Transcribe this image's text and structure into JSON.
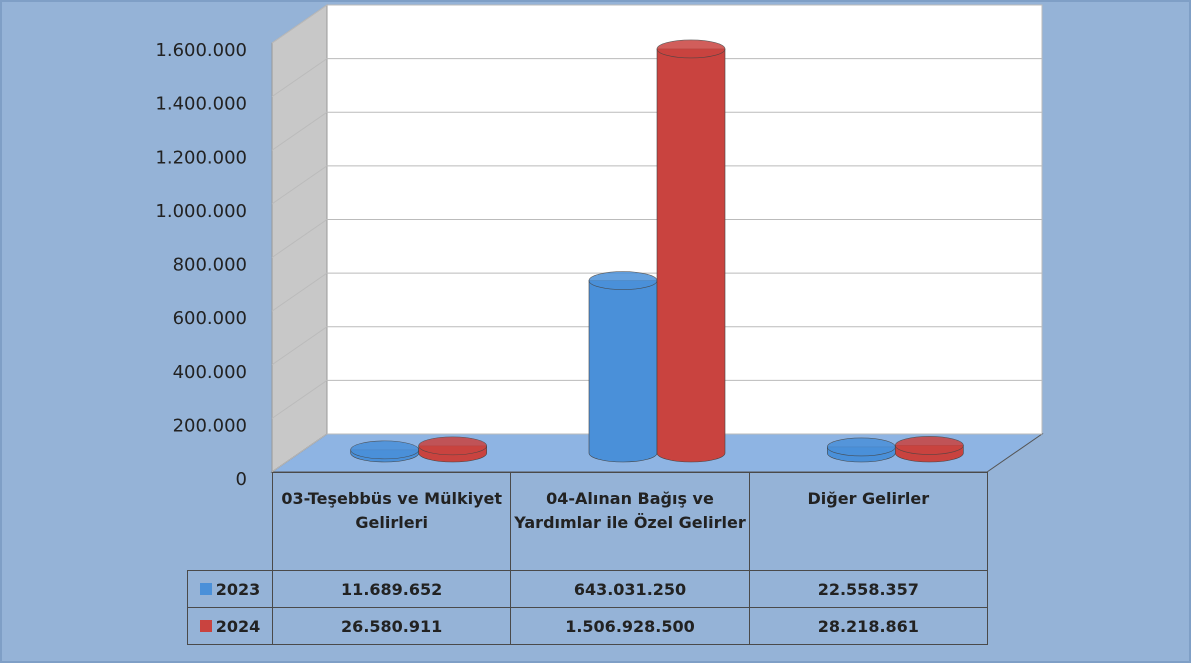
{
  "chart_data": {
    "type": "cylinder",
    "categories": [
      "03-Teşebbüs ve Mülkiyet Gelirleri",
      "04-Alınan Bağış ve Yardımlar ile Özel Gelirler",
      "Diğer Gelirler"
    ],
    "series": [
      {
        "name": "2023",
        "color": "#4a90d9",
        "values": [
          11689.652,
          643031.25,
          22558.357
        ],
        "value_labels": [
          "11.689.652",
          "643.031.250",
          "22.558.357"
        ]
      },
      {
        "name": "2024",
        "color": "#c9433f",
        "values": [
          26580.911,
          1506928.5,
          28218.861
        ],
        "value_labels": [
          "26.580.911",
          "1.506.928.500",
          "28.218.861"
        ]
      }
    ],
    "ylim": [
      0,
      1600000
    ],
    "yticks": [
      0,
      {
        "value": 200000,
        "label": "200.000"
      },
      {
        "value": 400000,
        "label": "400.000"
      },
      {
        "value": 600000,
        "label": "600.000"
      },
      {
        "value": 800000,
        "label": "800.000"
      },
      {
        "value": 1000000,
        "label": "1.000.000"
      },
      {
        "value": 1200000,
        "label": "1.200.000"
      },
      {
        "value": 1400000,
        "label": "1.400.000"
      },
      {
        "value": 1600000,
        "label": "1.600.000"
      }
    ],
    "grid": true
  }
}
